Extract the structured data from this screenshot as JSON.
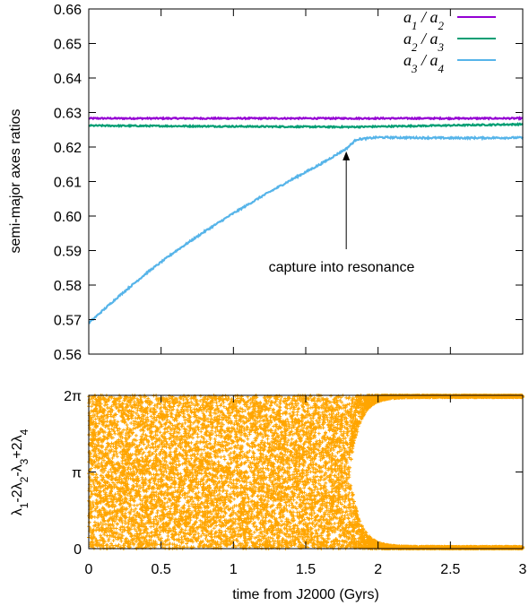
{
  "chart_data": [
    {
      "type": "line",
      "ylabel": "semi-major axes ratios",
      "xlim": [
        0,
        3
      ],
      "ylim": [
        0.56,
        0.66
      ],
      "yticks": [
        "0.56",
        "0.57",
        "0.58",
        "0.59",
        "0.60",
        "0.61",
        "0.62",
        "0.63",
        "0.64",
        "0.65",
        "0.66"
      ],
      "legend_position": "top-right",
      "grid": false,
      "series": [
        {
          "name_lhs": "a",
          "name_lhs_sub": "1",
          "name_sep": " / ",
          "name_rhs": "a",
          "name_rhs_sub": "2",
          "color": "#9400d3",
          "x": [
            0,
            3
          ],
          "y": [
            0.6283,
            0.6283
          ]
        },
        {
          "name_lhs": "a",
          "name_lhs_sub": "2",
          "name_sep": " / ",
          "name_rhs": "a",
          "name_rhs_sub": "3",
          "color": "#009e73",
          "x": [
            0,
            1.8,
            3
          ],
          "y": [
            0.6262,
            0.6258,
            0.6266
          ]
        },
        {
          "name_lhs": "a",
          "name_lhs_sub": "3",
          "name_sep": " / ",
          "name_rhs": "a",
          "name_rhs_sub": "4",
          "color": "#56b4e9",
          "x": [
            0,
            0.2,
            0.4,
            0.6,
            0.8,
            1.0,
            1.2,
            1.4,
            1.6,
            1.78,
            1.85,
            2.0,
            2.5,
            3.0
          ],
          "y": [
            0.569,
            0.5765,
            0.5835,
            0.5898,
            0.5955,
            0.6008,
            0.6058,
            0.6105,
            0.615,
            0.6195,
            0.6222,
            0.6228,
            0.6226,
            0.6227
          ]
        }
      ],
      "annotation": {
        "text": "capture into resonance",
        "arrow_to": [
          1.78,
          0.6203
        ]
      }
    },
    {
      "type": "scatter",
      "ylabel": "λ1-2λ2-λ3+2λ4",
      "ylabel_parts": [
        {
          "t": "λ",
          "s": "1"
        },
        {
          "t": "-2λ",
          "s": "2"
        },
        {
          "t": "-λ",
          "s": "3"
        },
        {
          "t": "+2λ",
          "s": "4"
        }
      ],
      "xlabel": "time from J2000 (Gyrs)",
      "xlim": [
        0,
        3
      ],
      "ylim": [
        0,
        6.2832
      ],
      "xticks": [
        "0",
        "0.5",
        "1",
        "1.5",
        "2",
        "2.5",
        "3"
      ],
      "yticks": [
        "0",
        "π",
        "2π"
      ],
      "color": "#ffa500",
      "description_of_behaviour": {
        "circulation_end_x": 1.8,
        "libration_center": [
          0,
          6.2832
        ]
      }
    }
  ]
}
